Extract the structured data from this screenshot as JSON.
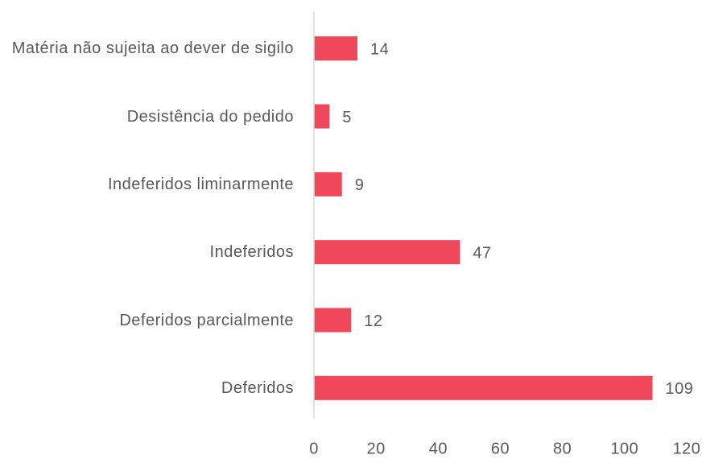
{
  "chart_data": {
    "type": "bar",
    "orientation": "horizontal",
    "categories": [
      "Matéria não sujeita ao dever de sigilo",
      "Desistência do pedido",
      "Indeferidos liminarmente",
      "Indeferidos",
      "Deferidos parcialmente",
      "Deferidos"
    ],
    "values": [
      14,
      5,
      9,
      47,
      12,
      109
    ],
    "color": "#f0475a",
    "xlim": [
      0,
      120
    ],
    "xticks": [
      0,
      20,
      40,
      60,
      80,
      100,
      120
    ],
    "grid": false
  }
}
